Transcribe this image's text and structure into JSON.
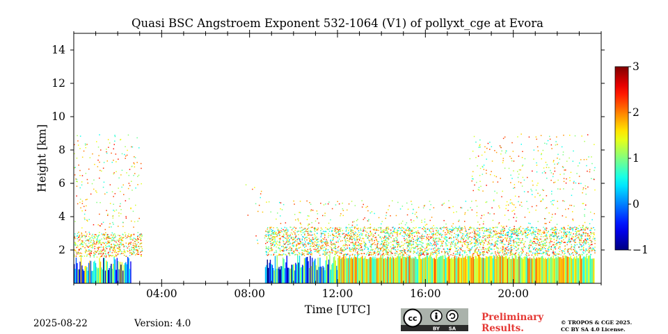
{
  "chart_data": {
    "type": "heatmap",
    "title": "Quasi BSC Angstroem Exponent 532-1064 (V1) of pollyxt_cge at Evora",
    "xlabel": "Time [UTC]",
    "ylabel": "Height [km]",
    "xlim_hours": [
      0,
      24
    ],
    "ylim_km": [
      0,
      15
    ],
    "x_ticks": [
      "04:00",
      "08:00",
      "12:00",
      "16:00",
      "20:00"
    ],
    "x_tick_hours": [
      4,
      8,
      12,
      16,
      20
    ],
    "y_ticks": [
      "2",
      "4",
      "6",
      "8",
      "10",
      "12",
      "14"
    ],
    "y_tick_values": [
      2,
      4,
      6,
      8,
      10,
      12,
      14
    ],
    "colorbar": {
      "range": [
        -1,
        3
      ],
      "ticks": [
        "−1",
        "0",
        "1",
        "2",
        "3"
      ],
      "tick_values": [
        -1,
        0,
        1,
        2,
        3
      ],
      "colormap": "jet"
    },
    "layers": [
      {
        "t_start": 0.0,
        "t_end": 2.6,
        "z_bottom": 0.0,
        "z_top": 1.6,
        "value_range": [
          -1,
          1.8
        ],
        "structure": "vertical streaks"
      },
      {
        "t_start": 0.0,
        "t_end": 3.1,
        "z_bottom": 1.6,
        "z_top": 3.0,
        "value_range": [
          0.5,
          2.5
        ],
        "structure": "dense"
      },
      {
        "t_start": 0.0,
        "t_end": 3.1,
        "z_bottom": 3.0,
        "z_top": 9.0,
        "value_range": [
          0.5,
          2.5
        ],
        "structure": "sparse"
      },
      {
        "t_start": 7.8,
        "t_end": 9.0,
        "z_bottom": 2.4,
        "z_top": 6.0,
        "value_range": [
          0.5,
          2.5
        ],
        "structure": "very sparse"
      },
      {
        "t_start": 8.7,
        "t_end": 12.0,
        "z_bottom": 0.0,
        "z_top": 1.7,
        "value_range": [
          -1,
          1.5
        ],
        "structure": "vertical streaks"
      },
      {
        "t_start": 12.0,
        "t_end": 23.7,
        "z_bottom": 0.0,
        "z_top": 1.7,
        "value_range": [
          0.6,
          2.2
        ],
        "structure": "dense streaks"
      },
      {
        "t_start": 8.7,
        "t_end": 23.7,
        "z_bottom": 1.7,
        "z_top": 3.4,
        "value_range": [
          0.2,
          2.5
        ],
        "structure": "dense"
      },
      {
        "t_start": 9.0,
        "t_end": 18.0,
        "z_bottom": 3.4,
        "z_top": 5.0,
        "value_range": [
          0.5,
          2.5
        ],
        "structure": "sparse"
      },
      {
        "t_start": 18.0,
        "t_end": 23.7,
        "z_bottom": 3.4,
        "z_top": 9.0,
        "value_range": [
          0.5,
          2.5
        ],
        "structure": "sparse"
      }
    ]
  },
  "footer": {
    "date": "2025-08-22",
    "version": "Version: 4.0",
    "preliminary_line1": "Preliminary",
    "preliminary_line2": "Results.",
    "copyright_line1": "© TROPOS & CGE 2025.",
    "copyright_line2": "CC BY SA 4.0 License.",
    "cc_badge": {
      "cc": "cc",
      "by": "BY",
      "sa": "SA"
    }
  },
  "colors": {
    "preliminary": "#e53935",
    "badge_bg": "#aab2ab",
    "badge_dark": "#2b2b2b"
  }
}
